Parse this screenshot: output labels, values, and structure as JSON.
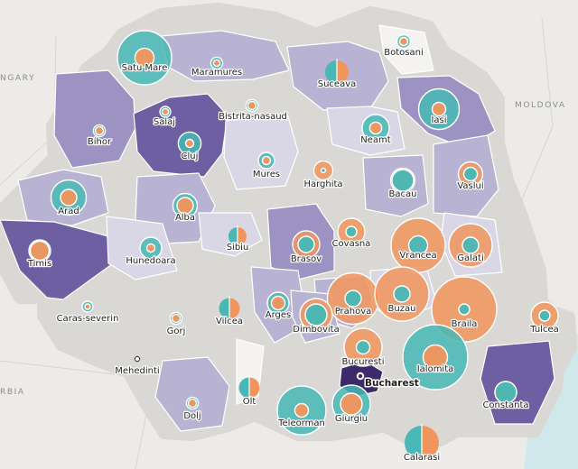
{
  "map": {
    "neighbor_labels": {
      "west_top": "NGARY",
      "east": "MOLDOVA",
      "west_bottom": "RBIA"
    },
    "capital": {
      "name": "Bucharest"
    },
    "colors": {
      "land": "#f4f3f2",
      "border_halo": "#d9d8d5",
      "background": "#ecebe8",
      "county_border": "#ffffff",
      "shade_1": "#d9d6e6",
      "shade_2": "#b9b3d3",
      "shade_3": "#9c93c2",
      "shade_4": "#6e5fa2",
      "capital_fill": "#3d2a6b",
      "sea": "#cfe8ec",
      "outer_circle": "#f1955c",
      "inner_circle": "#47b8b5"
    },
    "counties": [
      {
        "name": "Satu Mare",
        "shade": 0,
        "value_a": 0.35,
        "value_b": 1.0
      },
      {
        "name": "Maramures",
        "shade": 2,
        "value_a": 0.12,
        "value_b": 0.22
      },
      {
        "name": "Botosani",
        "shade": 0,
        "value_a": 0.15,
        "value_b": 0.25
      },
      {
        "name": "Suceava",
        "shade": 2,
        "value_a": 0.3,
        "value_b": 0.3,
        "split": true
      },
      {
        "name": "Salaj",
        "shade": 0,
        "value_a": 0.12,
        "value_b": 0.2
      },
      {
        "name": "Bistrita-nasaud",
        "shade": 0,
        "value_a": 0.15,
        "value_b": 0.22
      },
      {
        "name": "Iasi",
        "shade": 3,
        "value_a": 0.25,
        "value_b": 0.75
      },
      {
        "name": "Bihor",
        "shade": 3,
        "value_a": 0.15,
        "value_b": 0.22
      },
      {
        "name": "Neamt",
        "shade": 1,
        "value_a": 0.22,
        "value_b": 0.5
      },
      {
        "name": "Cluj",
        "shade": 4,
        "value_a": 0.15,
        "value_b": 0.42
      },
      {
        "name": "Mures",
        "shade": 1,
        "value_a": 0.15,
        "value_b": 0.3
      },
      {
        "name": "Harghita",
        "shade": 0,
        "value_a": 0.35,
        "value_b": 0.08
      },
      {
        "name": "Bacau",
        "shade": 2,
        "value_a": 0.45,
        "value_b": 0.4
      },
      {
        "name": "Vaslui",
        "shade": 2,
        "value_a": 0.45,
        "value_b": 0.25
      },
      {
        "name": "Arad",
        "shade": 2,
        "value_a": 0.3,
        "value_b": 0.65
      },
      {
        "name": "Alba",
        "shade": 2,
        "value_a": 0.3,
        "value_b": 0.45
      },
      {
        "name": "Covasna",
        "shade": 0,
        "value_a": 0.5,
        "value_b": 0.2
      },
      {
        "name": "Timis",
        "shade": 4,
        "value_a": 0.35,
        "value_b": 0.4
      },
      {
        "name": "Hunedoara",
        "shade": 1,
        "value_a": 0.15,
        "value_b": 0.4
      },
      {
        "name": "Sibiu",
        "shade": 1,
        "value_a": 0.2,
        "value_b": 0.2,
        "split": true
      },
      {
        "name": "Brasov",
        "shade": 3,
        "value_a": 0.5,
        "value_b": 0.3
      },
      {
        "name": "Vrancea",
        "shade": 0,
        "value_a": 1.0,
        "value_b": 0.35
      },
      {
        "name": "Galati",
        "shade": 1,
        "value_a": 0.8,
        "value_b": 0.3
      },
      {
        "name": "Caras-severin",
        "shade": 0,
        "value_a": 0.1,
        "value_b": 0.2
      },
      {
        "name": "Arges",
        "shade": 2,
        "value_a": 0.25,
        "value_b": 0.4
      },
      {
        "name": "Prahova",
        "shade": 2,
        "value_a": 0.95,
        "value_b": 0.3
      },
      {
        "name": "Buzau",
        "shade": 1,
        "value_a": 1.0,
        "value_b": 0.3
      },
      {
        "name": "Braila",
        "shade": 0,
        "value_a": 1.2,
        "value_b": 0.2
      },
      {
        "name": "Tulcea",
        "shade": 0,
        "value_a": 0.5,
        "value_b": 0.2
      },
      {
        "name": "Gorj",
        "shade": 0,
        "value_a": 0.15,
        "value_b": 0.22
      },
      {
        "name": "Vilcea",
        "shade": 0,
        "value_a": 0.25,
        "value_b": 0.25,
        "split": true
      },
      {
        "name": "Dimbovita",
        "shade": 2,
        "value_a": 0.6,
        "value_b": 0.4
      },
      {
        "name": "Mehedinti",
        "shade": 0,
        "value_a": 0.0,
        "value_b": 0.0,
        "dot_only": true
      },
      {
        "name": "Bucuresti",
        "shade": 0,
        "value_a": 0.7,
        "value_b": 0.25
      },
      {
        "name": "Ialomita",
        "shade": 0,
        "value_a": 0.45,
        "value_b": 1.2
      },
      {
        "name": "Constanta",
        "shade": 4,
        "value_a": 0.4,
        "value_b": 0.4
      },
      {
        "name": "Dolj",
        "shade": 2,
        "value_a": 0.15,
        "value_b": 0.22
      },
      {
        "name": "Olt",
        "shade": 0,
        "value_a": 0.25,
        "value_b": 0.25,
        "split": true
      },
      {
        "name": "Teleorman",
        "shade": 0,
        "value_a": 0.25,
        "value_b": 0.9
      },
      {
        "name": "Giurgiu",
        "shade": 0,
        "value_a": 0.4,
        "value_b": 0.7
      },
      {
        "name": "Calarasi",
        "shade": 0,
        "value_a": 0.5,
        "value_b": 0.5,
        "split": true
      }
    ]
  }
}
